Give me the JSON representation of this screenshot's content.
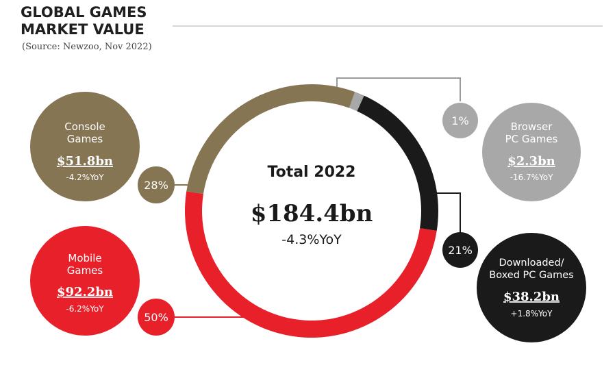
{
  "header": {
    "title_line1": "GLOBAL GAMES",
    "title_line2": "MARKET VALUE",
    "source": "(Source: Newzoo, Nov 2022)"
  },
  "chart_data": {
    "type": "pie",
    "title": "GLOBAL GAMES MARKET VALUE",
    "subtitle": "(Source: Newzoo, Nov 2022)",
    "center": {
      "label": "Total 2022",
      "value": "$184.4bn",
      "change": "-4.3%YoY"
    },
    "start_angle_deg": -70,
    "slices": [
      {
        "key": "browser",
        "label_line1": "Browser",
        "label_line2": "PC Games",
        "value": 2.3,
        "value_label": "$2.3bn",
        "change": "-16.7%YoY",
        "percent": 1,
        "percent_label": "1%",
        "color": "#a8a8a8",
        "bubble_color": "#a8a8a8"
      },
      {
        "key": "downloaded",
        "label_line1": "Downloaded/",
        "label_line2": "Boxed PC Games",
        "value": 38.2,
        "value_label": "$38.2bn",
        "change": "+1.8%YoY",
        "percent": 21,
        "percent_label": "21%",
        "color": "#1a1a1a",
        "bubble_color": "#1a1a1a"
      },
      {
        "key": "mobile",
        "label_line1": "Mobile",
        "label_line2": "Games",
        "value": 92.2,
        "value_label": "$92.2bn",
        "change": "-6.2%YoY",
        "percent": 50,
        "percent_label": "50%",
        "color": "#e8202a",
        "bubble_color": "#e8202a"
      },
      {
        "key": "console",
        "label_line1": "Console",
        "label_line2": "Games",
        "value": 51.8,
        "value_label": "$51.8bn",
        "change": "-4.2%YoY",
        "percent": 28,
        "percent_label": "28%",
        "color": "#857553",
        "bubble_color": "#857553"
      }
    ]
  }
}
